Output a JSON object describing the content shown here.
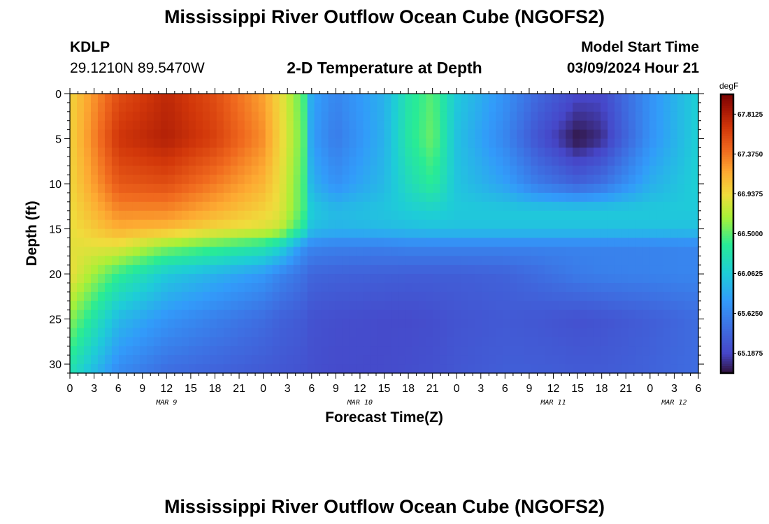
{
  "title": "Mississippi River Outflow Ocean Cube (NGOFS2)",
  "footer_title": "Mississippi River Outflow Ocean Cube (NGOFS2)",
  "station": {
    "id": "KDLP",
    "coords": "29.1210N  89.5470W"
  },
  "subtitle": "2-D Temperature at Depth",
  "model_start": {
    "label": "Model Start Time",
    "value": "03/09/2024 Hour 21"
  },
  "chart_data": {
    "type": "heatmap",
    "title": "2-D Temperature at Depth",
    "xlabel": "Forecast Time(Z)",
    "ylabel": "Depth (ft)",
    "x_ticks": [
      "0",
      "3",
      "6",
      "9",
      "12",
      "15",
      "18",
      "21",
      "0",
      "3",
      "6",
      "9",
      "12",
      "15",
      "18",
      "21",
      "0",
      "3",
      "6",
      "9",
      "12",
      "15",
      "18",
      "21",
      "0",
      "3",
      "6"
    ],
    "x_tick_hours": [
      0,
      3,
      6,
      9,
      12,
      15,
      18,
      21,
      24,
      27,
      30,
      33,
      36,
      39,
      42,
      45,
      48,
      51,
      54,
      57,
      60,
      63,
      66,
      69,
      72,
      75,
      78
    ],
    "date_labels": [
      {
        "label": "MAR 9",
        "hour": 12
      },
      {
        "label": "MAR 10",
        "hour": 36
      },
      {
        "label": "MAR 11",
        "hour": 60
      },
      {
        "label": "MAR 12",
        "hour": 75
      }
    ],
    "xlim": [
      0,
      78
    ],
    "y_ticks": [
      0,
      5,
      10,
      15,
      20,
      25,
      30
    ],
    "ylim": [
      0,
      31
    ],
    "colorbar": {
      "unit": "degF",
      "ticks": [
        "67.8125",
        "67.3750",
        "66.9375",
        "66.5000",
        "66.0625",
        "65.6250",
        "65.1875"
      ],
      "min": 64.97,
      "max": 68.03
    },
    "columns_hours": [
      0,
      6,
      12,
      18,
      24,
      26,
      29,
      30,
      33,
      39,
      42,
      45,
      48,
      54,
      58,
      63,
      66,
      72,
      78
    ],
    "rows_depth_ft": [
      0,
      5,
      10,
      13,
      15,
      17,
      20,
      25,
      31
    ],
    "values_degF": [
      [
        66.97,
        67.55,
        67.75,
        67.55,
        67.2,
        66.95,
        66.45,
        65.82,
        65.62,
        65.9,
        66.3,
        66.5,
        66.05,
        65.7,
        65.42,
        65.2,
        65.2,
        65.7,
        66.1
      ],
      [
        66.97,
        67.68,
        67.8,
        67.62,
        67.28,
        66.98,
        66.5,
        65.78,
        65.55,
        65.9,
        66.32,
        66.55,
        66.0,
        65.62,
        65.28,
        64.98,
        65.08,
        65.7,
        66.1
      ],
      [
        66.95,
        67.5,
        67.55,
        67.35,
        67.12,
        66.92,
        66.45,
        65.9,
        65.7,
        65.95,
        66.2,
        66.38,
        66.02,
        65.8,
        65.55,
        65.38,
        65.48,
        65.88,
        66.1
      ],
      [
        66.92,
        67.3,
        67.3,
        67.15,
        66.98,
        66.88,
        66.45,
        66.05,
        65.95,
        66.02,
        66.08,
        66.12,
        66.05,
        66.05,
        66.05,
        66.05,
        66.05,
        66.05,
        66.05
      ],
      [
        66.9,
        67.15,
        67.1,
        66.95,
        66.85,
        66.78,
        66.3,
        65.98,
        65.92,
        65.95,
        65.98,
        66.0,
        66.0,
        66.0,
        66.0,
        66.0,
        66.0,
        66.0,
        66.0
      ],
      [
        66.88,
        66.88,
        66.6,
        66.45,
        66.3,
        66.15,
        65.7,
        65.62,
        65.58,
        65.58,
        65.6,
        65.6,
        65.6,
        65.6,
        65.6,
        65.6,
        65.6,
        65.6,
        65.62
      ],
      [
        66.92,
        66.4,
        66.05,
        65.9,
        65.75,
        65.62,
        65.48,
        65.4,
        65.38,
        65.36,
        65.35,
        65.35,
        65.35,
        65.38,
        65.45,
        65.55,
        65.58,
        65.6,
        65.62
      ],
      [
        66.62,
        65.95,
        65.72,
        65.58,
        65.45,
        65.38,
        65.32,
        65.27,
        65.24,
        65.22,
        65.22,
        65.24,
        65.28,
        65.32,
        65.3,
        65.26,
        65.28,
        65.35,
        65.45
      ],
      [
        66.25,
        65.65,
        65.45,
        65.38,
        65.32,
        65.3,
        65.27,
        65.25,
        65.22,
        65.22,
        65.24,
        65.26,
        65.3,
        65.35,
        65.35,
        65.33,
        65.33,
        65.38,
        65.45
      ]
    ]
  }
}
